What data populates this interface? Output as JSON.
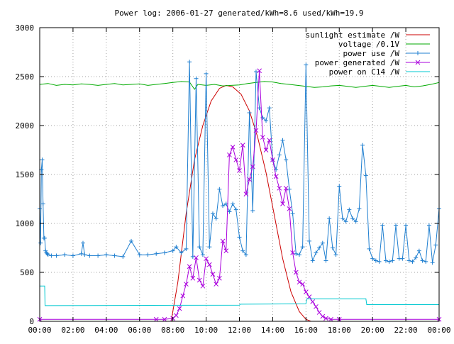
{
  "chart_data": {
    "type": "line",
    "title": "Power log: 2006-01-27 generated/kWh=8.6 used/kWh=19.9",
    "xlabel": "",
    "ylabel": "",
    "xlim": [
      0,
      24
    ],
    "ylim": [
      0,
      3000
    ],
    "grid": true,
    "legend_position": "top-right",
    "x_ticks": [
      {
        "value": 0,
        "label": "00:00"
      },
      {
        "value": 2,
        "label": "02:00"
      },
      {
        "value": 4,
        "label": "04:00"
      },
      {
        "value": 6,
        "label": "06:00"
      },
      {
        "value": 8,
        "label": "08:00"
      },
      {
        "value": 10,
        "label": "10:00"
      },
      {
        "value": 12,
        "label": "12:00"
      },
      {
        "value": 14,
        "label": "14:00"
      },
      {
        "value": 16,
        "label": "16:00"
      },
      {
        "value": 18,
        "label": "18:00"
      },
      {
        "value": 20,
        "label": "20:00"
      },
      {
        "value": 22,
        "label": "22:00"
      },
      {
        "value": 24,
        "label": "00:00"
      }
    ],
    "y_ticks": [
      {
        "value": 0,
        "label": "0"
      },
      {
        "value": 500,
        "label": "500"
      },
      {
        "value": 1000,
        "label": "1000"
      },
      {
        "value": 1500,
        "label": "1500"
      },
      {
        "value": 2000,
        "label": "2000"
      },
      {
        "value": 2500,
        "label": "2500"
      },
      {
        "value": 3000,
        "label": "3000"
      }
    ],
    "series": [
      {
        "name": "sunlight estimate /W",
        "color": "#cc0000",
        "marker": "none",
        "x": [
          0,
          7.9,
          8.3,
          8.8,
          9.3,
          9.8,
          10.3,
          10.8,
          11.2,
          11.6,
          12.1,
          12.6,
          13.1,
          13.6,
          14.1,
          14.6,
          15.1,
          15.6,
          16.0,
          16.3,
          24
        ],
        "y": [
          0,
          0,
          400,
          1100,
          1650,
          2000,
          2250,
          2380,
          2410,
          2395,
          2320,
          2150,
          1880,
          1520,
          1080,
          640,
          300,
          100,
          20,
          0,
          0
        ]
      },
      {
        "name": "voltage /0.1V",
        "color": "#00aa00",
        "marker": "none",
        "x": [
          0,
          0.5,
          1,
          1.5,
          2,
          2.5,
          3,
          3.5,
          4,
          4.5,
          5,
          5.5,
          6,
          6.5,
          7,
          7.5,
          8,
          8.5,
          9,
          9.3,
          9.5,
          10,
          10.5,
          11,
          11.5,
          12,
          12.5,
          13,
          13.5,
          14,
          14.5,
          15,
          15.5,
          16,
          16.5,
          17,
          17.5,
          18,
          18.5,
          19,
          19.5,
          20,
          20.5,
          21,
          21.5,
          22,
          22.5,
          23,
          23.5,
          24
        ],
        "y": [
          2420,
          2430,
          2410,
          2420,
          2415,
          2425,
          2420,
          2410,
          2420,
          2430,
          2415,
          2420,
          2425,
          2410,
          2420,
          2430,
          2440,
          2450,
          2445,
          2370,
          2420,
          2410,
          2420,
          2405,
          2410,
          2415,
          2430,
          2440,
          2450,
          2445,
          2430,
          2420,
          2410,
          2400,
          2390,
          2395,
          2405,
          2410,
          2400,
          2390,
          2400,
          2410,
          2400,
          2390,
          2400,
          2410,
          2395,
          2405,
          2420,
          2440
        ]
      },
      {
        "name": "power use /W",
        "color": "#1f7fd0",
        "marker": "plus",
        "x": [
          0,
          0.05,
          0.1,
          0.15,
          0.2,
          0.25,
          0.3,
          0.35,
          0.4,
          0.45,
          0.5,
          0.7,
          1,
          1.5,
          2,
          2.5,
          2.6,
          2.7,
          3,
          3.5,
          4,
          4.5,
          5,
          5.5,
          6,
          6.5,
          7,
          7.5,
          8,
          8.2,
          8.5,
          8.8,
          9.0,
          9.2,
          9.4,
          9.6,
          9.8,
          10.0,
          10.2,
          10.4,
          10.6,
          10.8,
          11.0,
          11.2,
          11.4,
          11.6,
          11.8,
          12.0,
          12.2,
          12.4,
          12.6,
          12.8,
          13.0,
          13.2,
          13.4,
          13.6,
          13.8,
          14.0,
          14.2,
          14.4,
          14.6,
          14.8,
          15.0,
          15.2,
          15.4,
          15.6,
          15.8,
          16.0,
          16.2,
          16.4,
          16.6,
          16.8,
          17.0,
          17.2,
          17.4,
          17.6,
          17.8,
          18.0,
          18.2,
          18.4,
          18.6,
          18.8,
          19.0,
          19.2,
          19.4,
          19.6,
          19.8,
          20.0,
          20.2,
          20.4,
          20.6,
          20.8,
          21.0,
          21.2,
          21.4,
          21.6,
          21.8,
          22.0,
          22.2,
          22.4,
          22.6,
          22.8,
          23.0,
          23.2,
          23.4,
          23.6,
          23.8,
          24.0
        ],
        "y": [
          1150,
          800,
          1550,
          1650,
          1200,
          850,
          850,
          720,
          700,
          690,
          680,
          670,
          670,
          680,
          670,
          690,
          800,
          680,
          670,
          670,
          680,
          670,
          660,
          820,
          680,
          680,
          690,
          700,
          720,
          760,
          700,
          740,
          2650,
          660,
          2480,
          760,
          680,
          2530,
          760,
          1100,
          1050,
          1350,
          1180,
          1200,
          1120,
          1200,
          1140,
          860,
          720,
          680,
          2130,
          1130,
          2550,
          2180,
          2080,
          2050,
          2180,
          1650,
          1550,
          1700,
          1850,
          1650,
          1350,
          1100,
          690,
          680,
          760,
          2620,
          820,
          620,
          700,
          750,
          800,
          620,
          1050,
          750,
          680,
          1380,
          1050,
          1020,
          1140,
          1050,
          1020,
          1150,
          1800,
          1490,
          740,
          640,
          620,
          610,
          980,
          620,
          610,
          620,
          980,
          640,
          640,
          980,
          620,
          610,
          650,
          720,
          620,
          610,
          980,
          600,
          780,
          1150
        ]
      },
      {
        "name": "power generated /W",
        "color": "#aa00dd",
        "marker": "cross",
        "x": [
          0,
          7.0,
          7.5,
          8.0,
          8.2,
          8.4,
          8.6,
          8.8,
          9.0,
          9.2,
          9.4,
          9.6,
          9.8,
          10.0,
          10.2,
          10.4,
          10.6,
          10.8,
          11.0,
          11.2,
          11.4,
          11.6,
          11.8,
          12.0,
          12.2,
          12.4,
          12.6,
          12.8,
          13.0,
          13.2,
          13.4,
          13.6,
          13.8,
          14.0,
          14.2,
          14.4,
          14.6,
          14.8,
          15.0,
          15.2,
          15.4,
          15.6,
          15.8,
          16.0,
          16.2,
          16.4,
          16.6,
          16.8,
          17.0,
          17.2,
          17.5,
          18.0,
          24.0
        ],
        "y": [
          20,
          20,
          20,
          30,
          60,
          130,
          260,
          380,
          560,
          440,
          650,
          420,
          360,
          640,
          580,
          480,
          380,
          440,
          820,
          720,
          1700,
          1780,
          1650,
          1540,
          1800,
          1300,
          1450,
          1580,
          1950,
          2560,
          1880,
          1750,
          1850,
          1650,
          1480,
          1360,
          1200,
          1360,
          1150,
          700,
          500,
          400,
          380,
          300,
          250,
          200,
          150,
          90,
          50,
          30,
          20,
          20,
          20
        ]
      },
      {
        "name": "power on C14 /W",
        "color": "#00c8d0",
        "marker": "none",
        "x": [
          0,
          0.3,
          0.32,
          12.0,
          12.05,
          16.0,
          16.05,
          19.6,
          19.65,
          24.0
        ],
        "y": [
          360,
          360,
          160,
          165,
          175,
          180,
          230,
          230,
          170,
          170
        ]
      }
    ]
  }
}
